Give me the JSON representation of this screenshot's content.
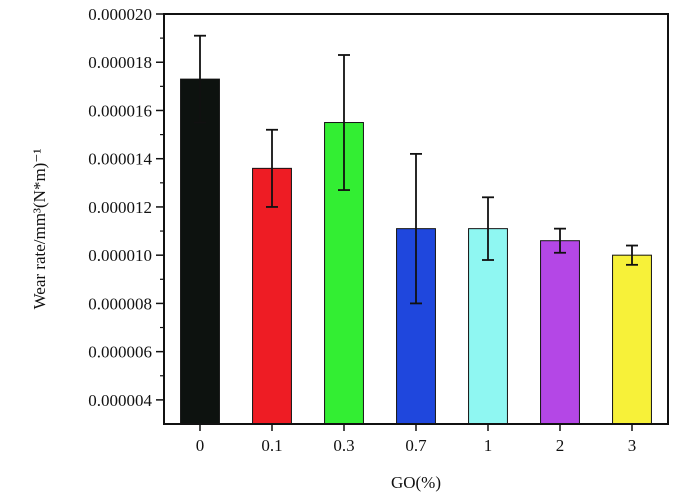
{
  "chart_data": {
    "type": "bar",
    "xlabel": "GO(%)",
    "ylabel": "Wear rate/mm³(N*m)⁻¹",
    "categories": [
      "0",
      "0.1",
      "0.3",
      "0.7",
      "1",
      "2",
      "3"
    ],
    "values": [
      1.73e-05,
      1.36e-05,
      1.55e-05,
      1.11e-05,
      1.11e-05,
      1.06e-05,
      1e-05
    ],
    "error": [
      1.8e-06,
      1.6e-06,
      2.8e-06,
      3.1e-06,
      1.3e-06,
      5e-07,
      4e-07
    ],
    "colors": [
      "#0d120f",
      "#ee1c24",
      "#33ee33",
      "#1f47dd",
      "#8ff7f2",
      "#b447e6",
      "#f7f139"
    ],
    "ylim": [
      3e-06,
      2e-05
    ],
    "yticks": [
      {
        "value": 4e-06,
        "label": "0.000004"
      },
      {
        "value": 6e-06,
        "label": "0.000006"
      },
      {
        "value": 8e-06,
        "label": "0.000008"
      },
      {
        "value": 1e-05,
        "label": "0.000010"
      },
      {
        "value": 1.2e-05,
        "label": "0.000012"
      },
      {
        "value": 1.4e-05,
        "label": "0.000014"
      },
      {
        "value": 1.6e-05,
        "label": "0.000016"
      },
      {
        "value": 1.8e-05,
        "label": "0.000018"
      },
      {
        "value": 2e-05,
        "label": "0.000020"
      }
    ],
    "grid": false,
    "legend": "none"
  }
}
